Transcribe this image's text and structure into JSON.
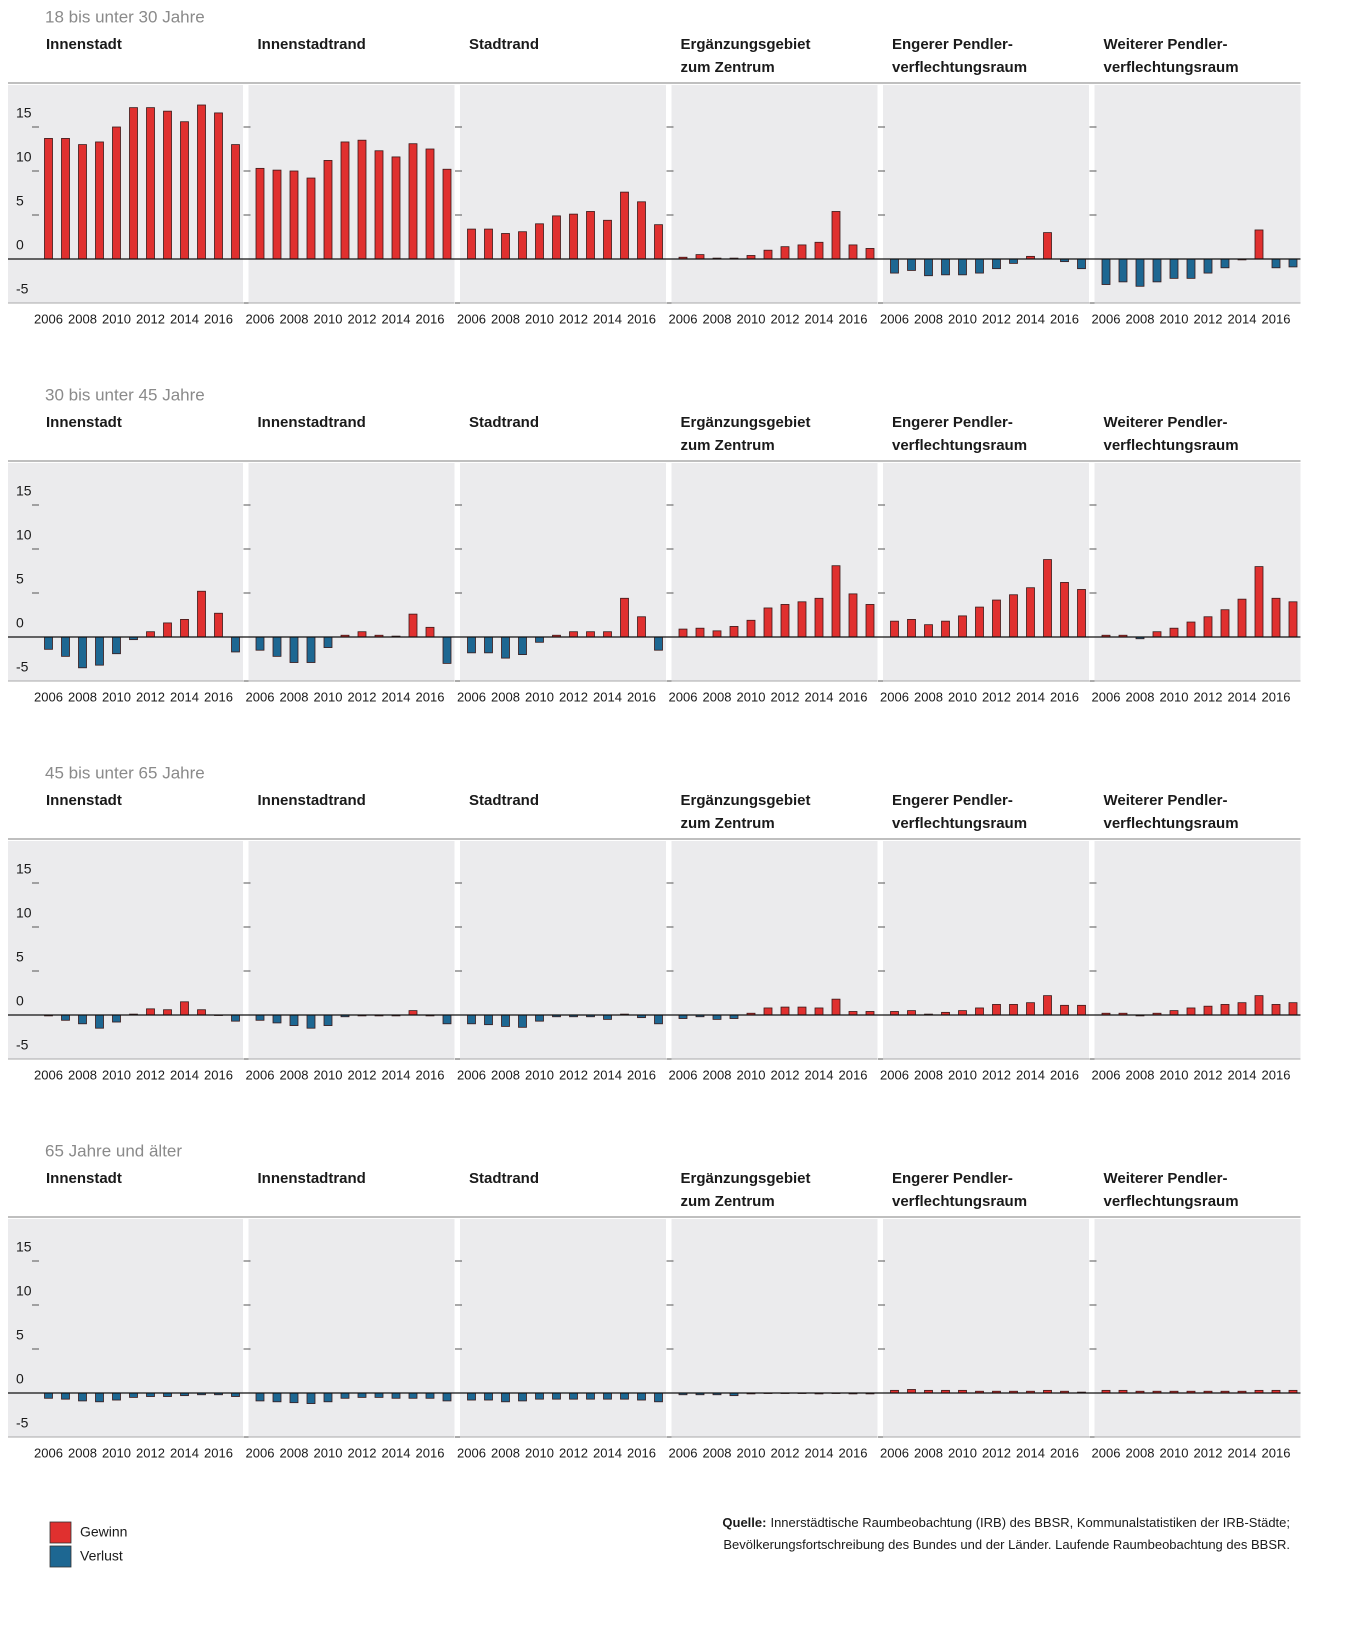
{
  "chart_data": {
    "type": "bar",
    "categories": [
      2006,
      null,
      2008,
      null,
      2010,
      null,
      2012,
      null,
      2014,
      null,
      2016,
      null
    ],
    "ylim": [
      -5,
      20
    ],
    "yticks": [
      -5,
      0,
      5,
      10,
      15
    ],
    "legend": [
      {
        "name": "Gewinn",
        "color": "#e0302f"
      },
      {
        "name": "Verlust",
        "color": "#1d6792"
      }
    ],
    "source_label": "Quelle:",
    "source": [
      "Innerstädtische Raumbeobachtung (IRB) des BBSR, Kommunalstatistiken der IRB-Städte;",
      "Bevölkerungsfortschreibung des Bundes und der Länder. Laufende Raumbeobachtung des BBSR."
    ],
    "groups": [
      {
        "title": "18 bis unter 30 Jahre",
        "panels": [
          {
            "title": [
              "Innenstadt"
            ],
            "values": [
              13.7,
              13.7,
              13.0,
              13.3,
              15.0,
              17.2,
              17.2,
              16.8,
              15.6,
              17.5,
              16.6,
              13.0
            ]
          },
          {
            "title": [
              "Innenstadtrand"
            ],
            "values": [
              10.3,
              10.1,
              10.0,
              9.2,
              11.2,
              13.3,
              13.5,
              12.3,
              11.6,
              13.1,
              12.5,
              10.2
            ]
          },
          {
            "title": [
              "Stadtrand"
            ],
            "values": [
              3.4,
              3.4,
              2.9,
              3.1,
              4.0,
              4.9,
              5.1,
              5.4,
              4.4,
              7.6,
              6.5,
              3.9
            ]
          },
          {
            "title": [
              "Ergänzungsgebiet",
              "zum Zentrum"
            ],
            "values": [
              0.2,
              0.5,
              0.1,
              0.1,
              0.4,
              1.0,
              1.4,
              1.6,
              1.9,
              5.4,
              1.6,
              1.2
            ]
          },
          {
            "title": [
              "Engerer Pendler-",
              "verflechtungsraum"
            ],
            "values": [
              -1.6,
              -1.3,
              -1.9,
              -1.8,
              -1.8,
              -1.6,
              -1.1,
              -0.5,
              0.3,
              3.0,
              -0.3,
              -1.1
            ]
          },
          {
            "title": [
              "Weiterer Pendler-",
              "verflechtungsraum"
            ],
            "values": [
              -2.9,
              -2.6,
              -3.1,
              -2.6,
              -2.2,
              -2.2,
              -1.6,
              -1.0,
              -0.1,
              3.3,
              -1.0,
              -0.9
            ]
          }
        ]
      },
      {
        "title": "30 bis unter 45 Jahre",
        "panels": [
          {
            "title": [
              "Innenstadt"
            ],
            "values": [
              -1.4,
              -2.2,
              -3.5,
              -3.2,
              -1.9,
              -0.3,
              0.6,
              1.6,
              2.0,
              5.2,
              2.7,
              -1.7
            ]
          },
          {
            "title": [
              "Innenstadtrand"
            ],
            "values": [
              -1.5,
              -2.2,
              -2.9,
              -2.9,
              -1.2,
              0.2,
              0.6,
              0.2,
              0.1,
              2.6,
              1.1,
              -3.0
            ]
          },
          {
            "title": [
              "Stadtrand"
            ],
            "values": [
              -1.8,
              -1.8,
              -2.4,
              -2.0,
              -0.6,
              0.2,
              0.6,
              0.6,
              0.6,
              4.4,
              2.3,
              -1.5
            ]
          },
          {
            "title": [
              "Ergänzungsgebiet",
              "zum Zentrum"
            ],
            "values": [
              0.9,
              1.0,
              0.7,
              1.2,
              1.9,
              3.3,
              3.7,
              4.0,
              4.4,
              8.1,
              4.9,
              3.7
            ]
          },
          {
            "title": [
              "Engerer Pendler-",
              "verflechtungsraum"
            ],
            "values": [
              1.8,
              2.0,
              1.4,
              1.8,
              2.4,
              3.4,
              4.2,
              4.8,
              5.6,
              8.8,
              6.2,
              5.4
            ]
          },
          {
            "title": [
              "Weiterer Pendler-",
              "verflechtungsraum"
            ],
            "values": [
              0.2,
              0.2,
              -0.2,
              0.6,
              1.0,
              1.7,
              2.3,
              3.1,
              4.3,
              8.0,
              4.4,
              4.0
            ]
          }
        ]
      },
      {
        "title": "45 bis unter 65 Jahre",
        "panels": [
          {
            "title": [
              "Innenstadt"
            ],
            "values": [
              -0.1,
              -0.6,
              -1.0,
              -1.5,
              -0.8,
              0.1,
              0.7,
              0.6,
              1.5,
              0.6,
              0,
              -0.7
            ]
          },
          {
            "title": [
              "Innenstadtrand"
            ],
            "values": [
              -0.6,
              -0.9,
              -1.2,
              -1.5,
              -1.2,
              -0.2,
              -0.1,
              -0.1,
              -0.1,
              0.5,
              -0.1,
              -1.0
            ]
          },
          {
            "title": [
              "Stadtrand"
            ],
            "values": [
              -1.0,
              -1.1,
              -1.3,
              -1.4,
              -0.7,
              -0.2,
              -0.2,
              -0.2,
              -0.5,
              0.1,
              -0.3,
              -1.0
            ]
          },
          {
            "title": [
              "Ergänzungsgebiet",
              "zum Zentrum"
            ],
            "values": [
              -0.4,
              -0.2,
              -0.5,
              -0.4,
              0.2,
              0.8,
              0.9,
              0.9,
              0.8,
              1.8,
              0.4,
              0.4
            ]
          },
          {
            "title": [
              "Engerer Pendler-",
              "verflechtungsraum"
            ],
            "values": [
              0.4,
              0.5,
              0.1,
              0.3,
              0.5,
              0.8,
              1.2,
              1.2,
              1.4,
              2.2,
              1.1,
              1.1
            ]
          },
          {
            "title": [
              "Weiterer Pendler-",
              "verflechtungsraum"
            ],
            "values": [
              0.2,
              0.2,
              -0.1,
              0.2,
              0.5,
              0.8,
              1.0,
              1.2,
              1.4,
              2.2,
              1.2,
              1.4
            ]
          }
        ]
      },
      {
        "title": "65 Jahre und älter",
        "panels": [
          {
            "title": [
              "Innenstadt"
            ],
            "values": [
              -0.6,
              -0.7,
              -0.9,
              -1.0,
              -0.8,
              -0.5,
              -0.4,
              -0.4,
              -0.3,
              -0.2,
              -0.2,
              -0.4
            ]
          },
          {
            "title": [
              "Innenstadtrand"
            ],
            "values": [
              -0.9,
              -1.0,
              -1.1,
              -1.2,
              -1.0,
              -0.6,
              -0.5,
              -0.5,
              -0.6,
              -0.6,
              -0.6,
              -0.9
            ]
          },
          {
            "title": [
              "Stadtrand"
            ],
            "values": [
              -0.8,
              -0.8,
              -1.0,
              -0.9,
              -0.7,
              -0.7,
              -0.7,
              -0.7,
              -0.7,
              -0.7,
              -0.8,
              -1.0
            ]
          },
          {
            "title": [
              "Ergänzungsgebiet",
              "zum Zentrum"
            ],
            "values": [
              -0.2,
              -0.2,
              -0.2,
              -0.3,
              -0.1,
              0,
              0,
              0,
              -0.1,
              0,
              -0.1,
              -0.1
            ]
          },
          {
            "title": [
              "Engerer Pendler-",
              "verflechtungsraum"
            ],
            "values": [
              0.3,
              0.4,
              0.3,
              0.3,
              0.3,
              0.2,
              0.2,
              0.2,
              0.2,
              0.3,
              0.2,
              0.1
            ]
          },
          {
            "title": [
              "Weiterer Pendler-",
              "verflechtungsraum"
            ],
            "values": [
              0.3,
              0.3,
              0.2,
              0.2,
              0.2,
              0.2,
              0.2,
              0.2,
              0.2,
              0.3,
              0.3,
              0.3
            ]
          }
        ]
      }
    ]
  }
}
